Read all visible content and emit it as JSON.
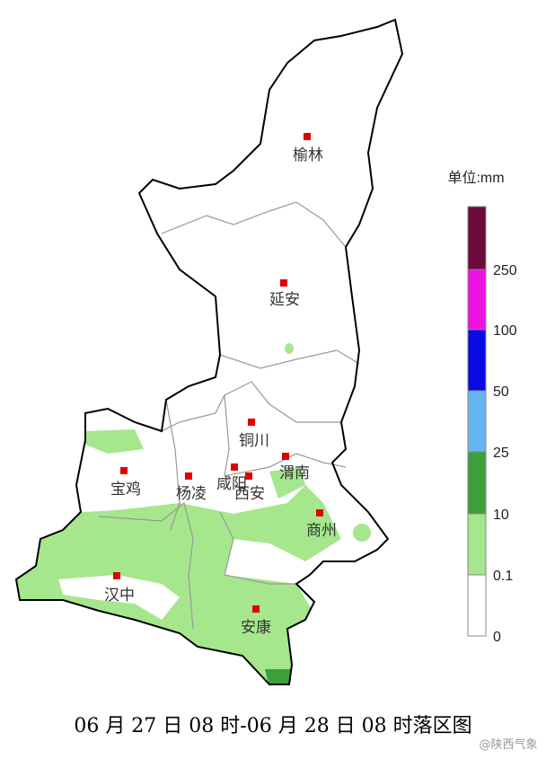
{
  "map": {
    "cities": [
      "榆林",
      "延安",
      "铜川",
      "渭南",
      "宝鸡",
      "杨凌",
      "咸阳",
      "西安",
      "商州",
      "汉中",
      "安康"
    ]
  },
  "legend": {
    "unit": "单位:mm",
    "labels": [
      "250",
      "100",
      "50",
      "25",
      "10",
      "0.1",
      "0"
    ],
    "colors": [
      "#7a0a45",
      "#f010e0",
      "#0a0ae6",
      "#64b4f0",
      "#3c9f3c",
      "#a6e68c",
      "#ffffff"
    ]
  },
  "title": "06 月 27 日 08 时-06 月 28 日 08 时落区图",
  "watermark": "@陕西气象"
}
